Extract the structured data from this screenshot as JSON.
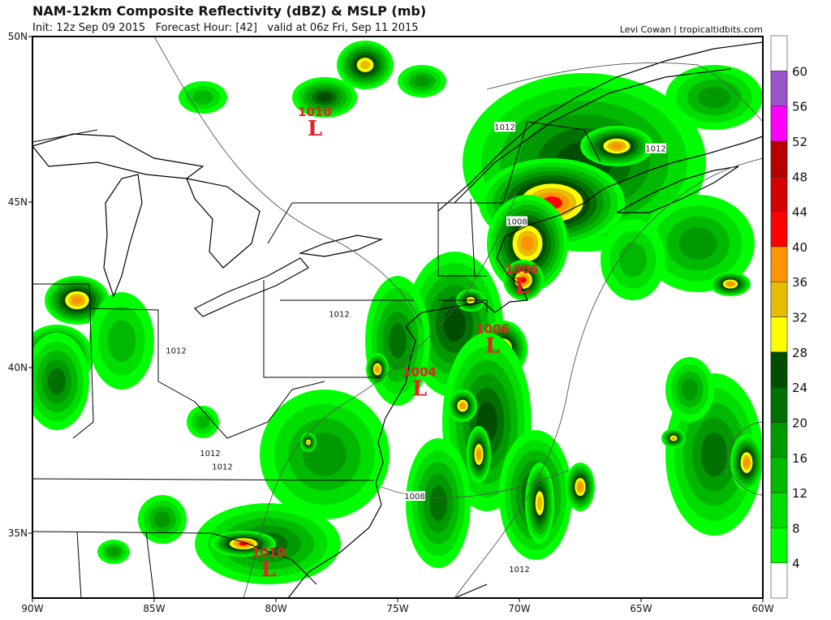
{
  "header": {
    "title": "NAM-12km Composite Reflectivity (dBZ) & MSLP (mb)",
    "subtitle": "Init: 12z Sep 09 2015   Forecast Hour: [42]   valid at 06z Fri, Sep 11 2015",
    "credit": "Levi Cowan | tropicaltidbits.com"
  },
  "map": {
    "lon_range": [
      -90,
      -60
    ],
    "lat_range": [
      33,
      50
    ],
    "x_ticks": [
      {
        "lon": -90,
        "label": "90W"
      },
      {
        "lon": -85,
        "label": "85W"
      },
      {
        "lon": -80,
        "label": "80W"
      },
      {
        "lon": -75,
        "label": "75W"
      },
      {
        "lon": -70,
        "label": "70W"
      },
      {
        "lon": -65,
        "label": "65W"
      },
      {
        "lon": -60,
        "label": "60W"
      }
    ],
    "y_ticks": [
      {
        "lat": 50,
        "label": "50N"
      },
      {
        "lat": 45,
        "label": "45N"
      },
      {
        "lat": 40,
        "label": "40N"
      },
      {
        "lat": 35,
        "label": "35N"
      }
    ],
    "lows": [
      {
        "pressure": "1010",
        "symbol": "L",
        "lon": -78.4,
        "lat": 47.25
      },
      {
        "pressure": "1006",
        "symbol": "L",
        "lon": -69.9,
        "lat": 42.5
      },
      {
        "pressure": "1006",
        "symbol": "L",
        "lon": -71.1,
        "lat": 40.7
      },
      {
        "pressure": "1004",
        "symbol": "L",
        "lon": -74.1,
        "lat": 39.4
      },
      {
        "pressure": "1010",
        "symbol": "L",
        "lon": -80.3,
        "lat": 33.95
      }
    ],
    "isobar_labels": [
      {
        "text": "1012",
        "lon": -70.6,
        "lat": 47.25
      },
      {
        "text": "1012",
        "lon": -64.4,
        "lat": 46.6
      },
      {
        "text": "1008",
        "lon": -70.1,
        "lat": 44.4
      },
      {
        "text": "1012",
        "lon": -77.4,
        "lat": 41.6
      },
      {
        "text": "1012",
        "lon": -84.1,
        "lat": 40.5
      },
      {
        "text": "1012",
        "lon": -82.7,
        "lat": 37.4
      },
      {
        "text": "1012",
        "lon": -82.2,
        "lat": 37.0
      },
      {
        "text": "1008",
        "lon": -74.3,
        "lat": 36.1
      },
      {
        "text": "1012",
        "lon": -70.0,
        "lat": 33.9
      }
    ]
  },
  "colorbar": {
    "unit": "dBZ",
    "levels": [
      {
        "min": 4,
        "color": "#00ff00"
      },
      {
        "min": 8,
        "color": "#00dd00"
      },
      {
        "min": 12,
        "color": "#00b800"
      },
      {
        "min": 16,
        "color": "#009a00"
      },
      {
        "min": 20,
        "color": "#007000"
      },
      {
        "min": 24,
        "color": "#004d00"
      },
      {
        "min": 28,
        "color": "#ffff00"
      },
      {
        "min": 32,
        "color": "#e8bc00"
      },
      {
        "min": 36,
        "color": "#ff9300"
      },
      {
        "min": 40,
        "color": "#ff0000"
      },
      {
        "min": 44,
        "color": "#d50000"
      },
      {
        "min": 48,
        "color": "#b80000"
      },
      {
        "min": 52,
        "color": "#ff00ff"
      },
      {
        "min": 56,
        "color": "#9955c9"
      }
    ],
    "tick_labels": [
      "4",
      "8",
      "12",
      "16",
      "20",
      "24",
      "28",
      "32",
      "36",
      "40",
      "44",
      "48",
      "52",
      "56",
      "60"
    ]
  }
}
